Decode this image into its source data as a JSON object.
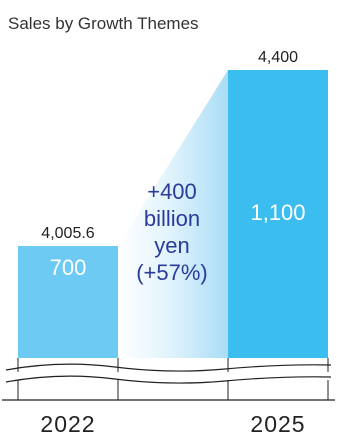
{
  "chart_data": {
    "type": "bar",
    "title": "Sales by Growth Themes",
    "categories": [
      "2022",
      "2025"
    ],
    "values": [
      4005.6,
      4400
    ],
    "total_labels": [
      "4,005.6",
      "4,400"
    ],
    "segment_labels": [
      "700",
      "1,100"
    ],
    "growth_annotation": [
      "+400",
      "billion",
      "yen",
      "(+57%)"
    ],
    "axis_break": true,
    "xlabel": "",
    "ylabel": "",
    "colors": {
      "bar_2022": "#6ccaf3",
      "bar_2025": "#3bbdef",
      "growth_band": "#bfe6f8",
      "growth_text": "#2b3b9a"
    }
  }
}
